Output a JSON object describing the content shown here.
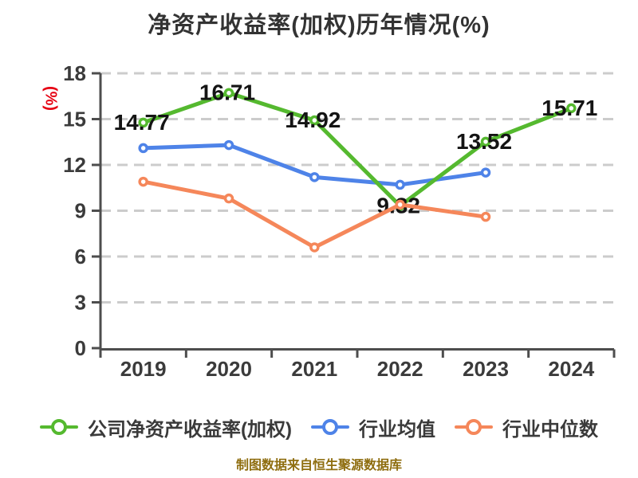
{
  "title": "净资产收益率(加权)历年情况(%)",
  "footer": "制图数据来自恒生聚源数据库",
  "colors": {
    "title_text": "#333333",
    "axis_line": "#4d4d4d",
    "axis_tick_text": "#3b3b3b",
    "grid_line": "#cccccc",
    "data_label_text": "#141414",
    "y_unit_label": "#e60012",
    "footer_text": "#8e6d0f",
    "series_company": "#55b92f",
    "series_industry_avg": "#4e83e8",
    "series_industry_median": "#f5875a",
    "marker_fill": "#ffffff"
  },
  "y_axis": {
    "unit_label": "(%)"
  },
  "chart_data": {
    "type": "line",
    "title": "净资产收益率(加权)历年情况(%)",
    "categories": [
      "2019",
      "2020",
      "2021",
      "2022",
      "2023",
      "2024"
    ],
    "series": [
      {
        "name": "公司净资产收益率(加权)",
        "color": "#55b92f",
        "values": [
          14.77,
          16.71,
          14.92,
          9.32,
          13.52,
          15.71
        ],
        "show_point_labels": true,
        "z": 2
      },
      {
        "name": "行业均值",
        "color": "#4e83e8",
        "values": [
          13.1,
          13.3,
          11.2,
          10.7,
          11.5,
          null
        ],
        "show_point_labels": false,
        "z": 1
      },
      {
        "name": "行业中位数",
        "color": "#f5875a",
        "values": [
          10.9,
          9.8,
          6.6,
          9.4,
          8.6,
          null
        ],
        "show_point_labels": false,
        "z": 3
      }
    ],
    "point_labels": [
      "14.77",
      "16.71",
      "14.92",
      "9.32",
      "13.52",
      "15.71"
    ],
    "ylabel": "(%)",
    "ylim": [
      0,
      18
    ],
    "yticks": [
      0,
      3,
      6,
      9,
      12,
      15,
      18
    ],
    "grid": "horizontal-dashed",
    "legend_position": "bottom"
  }
}
